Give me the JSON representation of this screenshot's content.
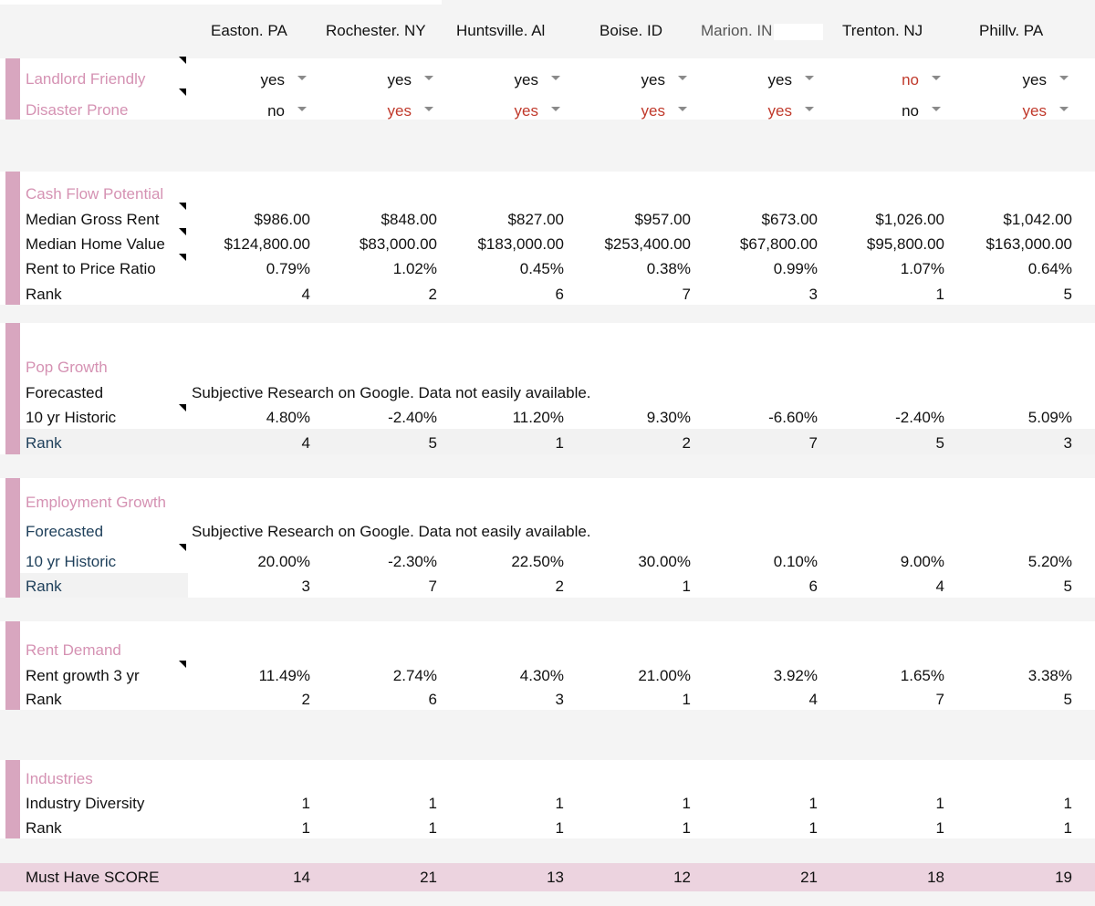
{
  "cities": [
    "Easton. PA",
    "Rochester. NY",
    "Huntsville. Al",
    "Boise. ID",
    "Marion. IN",
    "Trenton. NJ",
    "Phillv. PA"
  ],
  "colors": {
    "accent_pink": "#d592b3",
    "sidebar_pink": "#d8a6bf",
    "red_text": "#c0392b",
    "score_band": "#ecd3df",
    "teal_label": "#1e3f5a"
  },
  "top": {
    "landlord": {
      "label": "Landlord Friendly",
      "values": [
        "yes",
        "yes",
        "yes",
        "yes",
        "yes",
        "no",
        "yes"
      ]
    },
    "disaster": {
      "label": "Disaster Prone",
      "values": [
        "no",
        "yes",
        "yes",
        "yes",
        "yes",
        "no",
        "yes"
      ]
    }
  },
  "cashflow": {
    "title": "Cash Flow Potential",
    "rent": {
      "label": "Median Gross Rent",
      "values": [
        "$986.00",
        "$848.00",
        "$827.00",
        "$957.00",
        "$673.00",
        "$1,026.00",
        "$1,042.00"
      ]
    },
    "home": {
      "label": "Median Home Value",
      "values": [
        "$124,800.00",
        "$83,000.00",
        "$183,000.00",
        "$253,400.00",
        "$67,800.00",
        "$95,800.00",
        "$163,000.00"
      ]
    },
    "ratio": {
      "label": "Rent to Price Ratio",
      "values": [
        "0.79%",
        "1.02%",
        "0.45%",
        "0.38%",
        "0.99%",
        "1.07%",
        "0.64%"
      ]
    },
    "rank": {
      "label": "Rank",
      "values": [
        "4",
        "2",
        "6",
        "7",
        "3",
        "1",
        "5"
      ]
    }
  },
  "pop": {
    "title": "Pop Growth",
    "forecast": {
      "label": "Forecasted",
      "note": "Subjective Research on Google. Data not easily available."
    },
    "hist": {
      "label": "10 yr Historic",
      "values": [
        "4.80%",
        "-2.40%",
        "11.20%",
        "9.30%",
        "-6.60%",
        "-2.40%",
        "5.09%"
      ]
    },
    "rank": {
      "label": "Rank",
      "values": [
        "4",
        "5",
        "1",
        "2",
        "7",
        "5",
        "3"
      ]
    }
  },
  "emp": {
    "title": "Employment Growth",
    "forecast": {
      "label": "Forecasted",
      "note": "Subjective Research on Google. Data not easily available."
    },
    "hist": {
      "label": "10 yr Historic",
      "values": [
        "20.00%",
        "-2.30%",
        "22.50%",
        "30.00%",
        "0.10%",
        "9.00%",
        "5.20%"
      ]
    },
    "rank": {
      "label": "Rank",
      "values": [
        "3",
        "7",
        "2",
        "1",
        "6",
        "4",
        "5"
      ]
    }
  },
  "rent": {
    "title": "Rent Demand",
    "growth": {
      "label": "Rent growth 3 yr",
      "values": [
        "11.49%",
        "2.74%",
        "4.30%",
        "21.00%",
        "3.92%",
        "1.65%",
        "3.38%"
      ]
    },
    "rank": {
      "label": "Rank",
      "values": [
        "2",
        "6",
        "3",
        "1",
        "4",
        "7",
        "5"
      ]
    }
  },
  "ind": {
    "title": "Industries",
    "diversity": {
      "label": "Industry Diversity",
      "values": [
        "1",
        "1",
        "1",
        "1",
        "1",
        "1",
        "1"
      ]
    },
    "rank": {
      "label": "Rank",
      "values": [
        "1",
        "1",
        "1",
        "1",
        "1",
        "1",
        "1"
      ]
    }
  },
  "score": {
    "label": "Must Have SCORE",
    "values": [
      "14",
      "21",
      "13",
      "12",
      "21",
      "18",
      "19"
    ]
  }
}
